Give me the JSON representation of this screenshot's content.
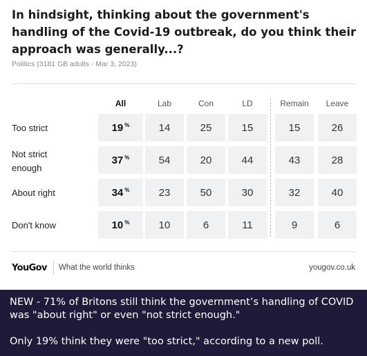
{
  "chart_data": {
    "type": "table",
    "title": "In hindsight, thinking about the government's handling of the Covid-19 outbreak, do you think their approach was generally...?",
    "subtitle": "Politics (3181 GB adults - Mar 3, 2023)",
    "columns": [
      "All",
      "Lab",
      "Con",
      "LD",
      "Remain",
      "Leave"
    ],
    "rows": [
      {
        "label": "Too strict",
        "values": [
          19,
          14,
          25,
          15,
          15,
          26
        ]
      },
      {
        "label": "Not strict enough",
        "values": [
          37,
          54,
          20,
          44,
          43,
          28
        ]
      },
      {
        "label": "About right",
        "values": [
          34,
          23,
          50,
          30,
          32,
          40
        ]
      },
      {
        "label": "Don't know",
        "values": [
          10,
          10,
          6,
          11,
          9,
          6
        ]
      }
    ],
    "percent_symbol": "%"
  },
  "footer": {
    "logo": "YouGov",
    "tagline": "What the world thinks",
    "site": "yougov.co.uk"
  },
  "caption": {
    "line1": "NEW - 71% of Britons still think the government’s handling of COVID was \"about right\" or even \"not strict enough.\"",
    "line2": "Only 19% think they were \"too strict,\" according to a new poll."
  }
}
